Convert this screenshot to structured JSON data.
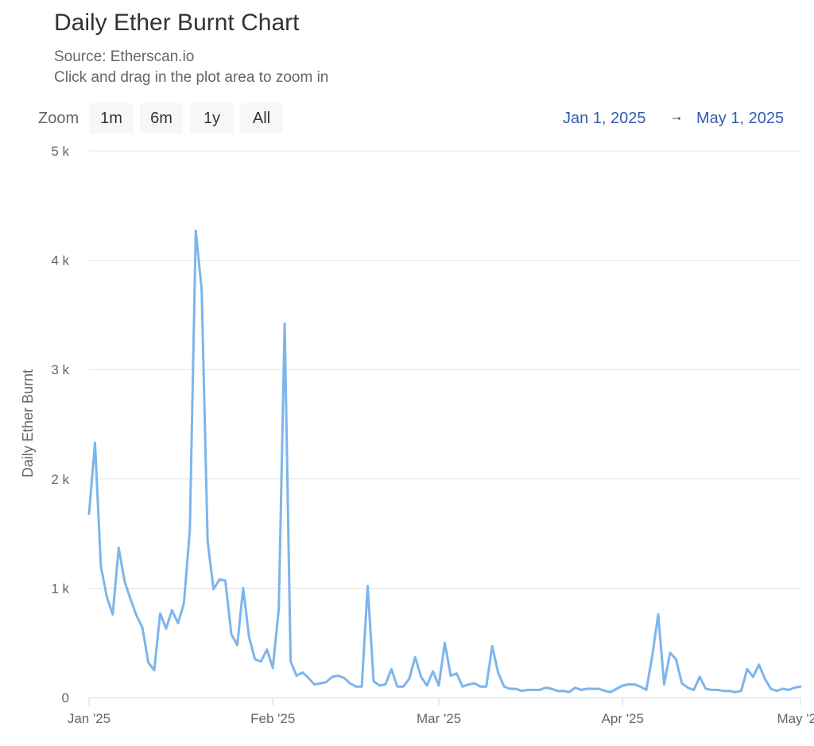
{
  "title": "Daily Ether Burnt Chart",
  "subtitle": "Source: Etherscan.io",
  "instruction": "Click and drag in the plot area to zoom in",
  "zoom": {
    "label": "Zoom",
    "buttons": [
      "1m",
      "6m",
      "1y",
      "All"
    ]
  },
  "range": {
    "from": "Jan 1, 2025",
    "arrow": "→",
    "to": "May 1, 2025"
  },
  "colors": {
    "line": "#7cb5ec",
    "grid": "#e6e6e6",
    "range_text": "#335cad"
  },
  "chart_data": {
    "type": "line",
    "title": "Daily Ether Burnt Chart",
    "xlabel": "",
    "ylabel": "Daily Ether Burnt",
    "ylim": [
      0,
      5000
    ],
    "xlim": [
      "2025-01-01",
      "2025-05-01"
    ],
    "yticks": [
      0,
      1000,
      2000,
      3000,
      4000,
      5000
    ],
    "ytick_labels": [
      "0",
      "1 k",
      "2 k",
      "3 k",
      "4 k",
      "5 k"
    ],
    "xticks": [
      "2025-01-01",
      "2025-02-01",
      "2025-03-01",
      "2025-04-01",
      "2025-05-01"
    ],
    "xtick_labels": [
      "Jan '25",
      "Feb '25",
      "Mar '25",
      "Apr '25",
      "May '25"
    ],
    "grid": true,
    "series": [
      {
        "x": [
          "2025-01-01",
          "2025-01-02",
          "2025-01-03",
          "2025-01-04",
          "2025-01-05",
          "2025-01-06",
          "2025-01-07",
          "2025-01-08",
          "2025-01-09",
          "2025-01-10",
          "2025-01-11",
          "2025-01-12",
          "2025-01-13",
          "2025-01-14",
          "2025-01-15",
          "2025-01-16",
          "2025-01-17",
          "2025-01-18",
          "2025-01-19",
          "2025-01-20",
          "2025-01-21",
          "2025-01-22",
          "2025-01-23",
          "2025-01-24",
          "2025-01-25",
          "2025-01-26",
          "2025-01-27",
          "2025-01-28",
          "2025-01-29",
          "2025-01-30",
          "2025-01-31",
          "2025-02-01",
          "2025-02-02",
          "2025-02-03",
          "2025-02-04",
          "2025-02-05",
          "2025-02-06",
          "2025-02-07",
          "2025-02-08",
          "2025-02-09",
          "2025-02-10",
          "2025-02-11",
          "2025-02-12",
          "2025-02-13",
          "2025-02-14",
          "2025-02-15",
          "2025-02-16",
          "2025-02-17",
          "2025-02-18",
          "2025-02-19",
          "2025-02-20",
          "2025-02-21",
          "2025-02-22",
          "2025-02-23",
          "2025-02-24",
          "2025-02-25",
          "2025-02-26",
          "2025-02-27",
          "2025-02-28",
          "2025-03-01",
          "2025-03-02",
          "2025-03-03",
          "2025-03-04",
          "2025-03-05",
          "2025-03-06",
          "2025-03-07",
          "2025-03-08",
          "2025-03-09",
          "2025-03-10",
          "2025-03-11",
          "2025-03-12",
          "2025-03-13",
          "2025-03-14",
          "2025-03-15",
          "2025-03-16",
          "2025-03-17",
          "2025-03-18",
          "2025-03-19",
          "2025-03-20",
          "2025-03-21",
          "2025-03-22",
          "2025-03-23",
          "2025-03-24",
          "2025-03-25",
          "2025-03-26",
          "2025-03-27",
          "2025-03-28",
          "2025-03-29",
          "2025-03-30",
          "2025-03-31",
          "2025-04-01",
          "2025-04-02",
          "2025-04-03",
          "2025-04-04",
          "2025-04-05",
          "2025-04-06",
          "2025-04-07",
          "2025-04-08",
          "2025-04-09",
          "2025-04-10",
          "2025-04-11",
          "2025-04-12",
          "2025-04-13",
          "2025-04-14",
          "2025-04-15",
          "2025-04-16",
          "2025-04-17",
          "2025-04-18",
          "2025-04-19",
          "2025-04-20",
          "2025-04-21",
          "2025-04-22",
          "2025-04-23",
          "2025-04-24",
          "2025-04-25",
          "2025-04-26",
          "2025-04-27",
          "2025-04-28",
          "2025-04-29",
          "2025-04-30",
          "2025-05-01"
        ],
        "values": [
          1680,
          2330,
          1200,
          920,
          760,
          1370,
          1060,
          900,
          750,
          640,
          320,
          250,
          770,
          630,
          800,
          680,
          860,
          1530,
          4270,
          3730,
          1430,
          990,
          1080,
          1070,
          580,
          480,
          1000,
          550,
          350,
          330,
          440,
          270,
          810,
          3420,
          330,
          200,
          230,
          180,
          120,
          130,
          140,
          190,
          200,
          180,
          130,
          100,
          100,
          1020,
          150,
          110,
          120,
          260,
          100,
          100,
          170,
          370,
          190,
          110,
          240,
          110,
          500,
          200,
          220,
          100,
          120,
          130,
          100,
          100,
          470,
          230,
          100,
          80,
          80,
          60,
          70,
          70,
          70,
          90,
          80,
          60,
          60,
          50,
          90,
          70,
          80,
          80,
          80,
          60,
          50,
          80,
          110,
          120,
          120,
          100,
          70,
          380,
          760,
          120,
          410,
          350,
          130,
          90,
          70,
          190,
          80,
          70,
          70,
          60,
          60,
          50,
          60,
          260,
          190,
          300,
          170,
          80,
          60,
          80,
          70,
          90,
          100
        ]
      }
    ]
  }
}
